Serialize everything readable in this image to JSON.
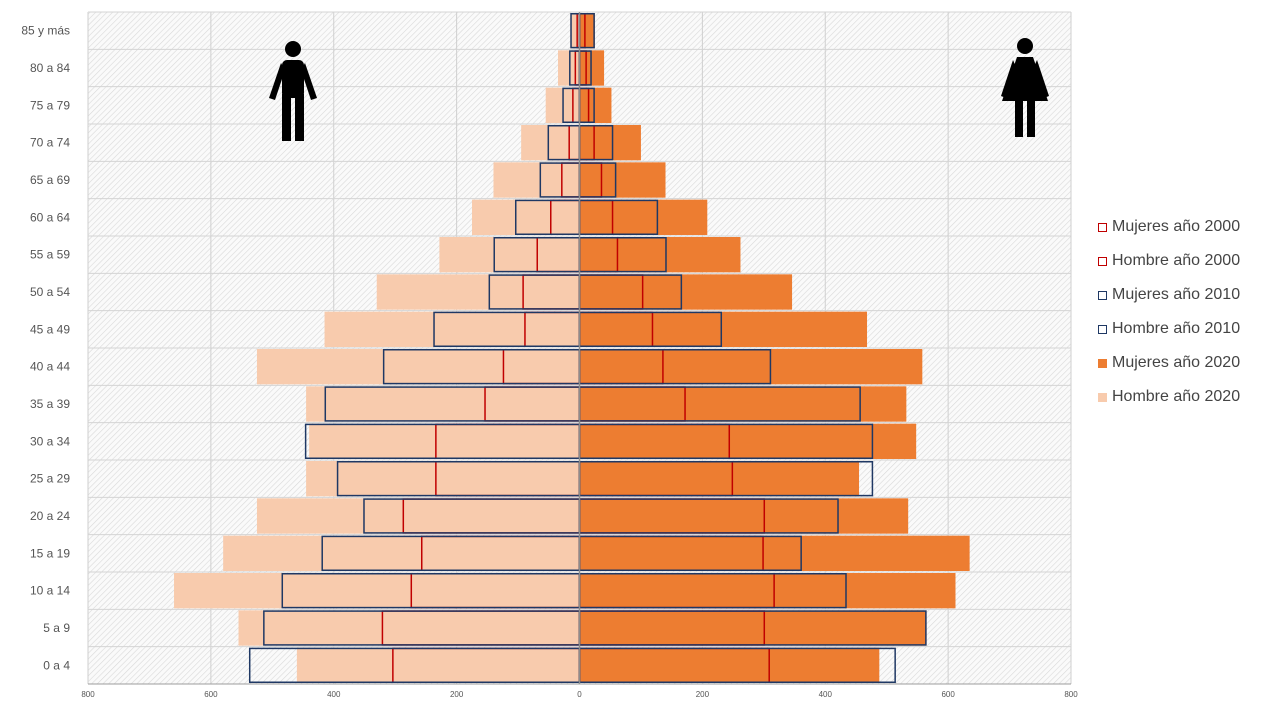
{
  "chart_data": {
    "type": "bar",
    "orientation": "horizontal-population-pyramid",
    "categories": [
      "0 a 4",
      "5 a 9",
      "10 a 14",
      "15 a 19",
      "20 a 24",
      "25 a 29",
      "30 a 34",
      "35 a 39",
      "40 a 44",
      "45 a 49",
      "50 a 54",
      "55 a 59",
      "60 a 64",
      "65 a 69",
      "70 a 74",
      "75 a 79",
      "80 a 84",
      "85 y más"
    ],
    "xlim": [
      -800,
      800
    ],
    "xticks": [
      -800,
      -600,
      -400,
      -200,
      0,
      200,
      400,
      600,
      800
    ],
    "xtick_labels": [
      "800",
      "600",
      "400",
      "200",
      "0",
      "200",
      "400",
      "600",
      "800"
    ],
    "grid": true,
    "legend_position": "right",
    "series": [
      {
        "name": "Hombre año 2020",
        "side": "left",
        "style": "fill",
        "color": "#f8cbad",
        "values": [
          460,
          555,
          660,
          580,
          525,
          445,
          440,
          445,
          525,
          415,
          330,
          228,
          175,
          140,
          95,
          55,
          35,
          15
        ]
      },
      {
        "name": "Mujeres año 2020",
        "side": "right",
        "style": "fill",
        "color": "#ed7d31",
        "values": [
          488,
          565,
          612,
          635,
          535,
          455,
          548,
          532,
          558,
          468,
          346,
          262,
          208,
          140,
          100,
          52,
          40,
          25
        ]
      },
      {
        "name": "Hombre año 2000",
        "side": "left",
        "style": "outline",
        "color": "#c00000",
        "values": [
          305,
          322,
          275,
          258,
          288,
          235,
          235,
          155,
          125,
          90,
          93,
          70,
          48,
          30,
          18,
          12,
          8,
          5
        ]
      },
      {
        "name": "Mujeres año 2000",
        "side": "right",
        "style": "outline",
        "color": "#c00000",
        "values": [
          310,
          302,
          318,
          300,
          302,
          250,
          245,
          173,
          137,
          120,
          104,
          63,
          55,
          37,
          25,
          16,
          12,
          10
        ]
      },
      {
        "name": "Hombre año 2010",
        "side": "left",
        "style": "outline",
        "color": "#1f3864",
        "values": [
          538,
          515,
          485,
          420,
          352,
          395,
          447,
          415,
          320,
          238,
          148,
          140,
          105,
          65,
          52,
          28,
          17,
          15
        ]
      },
      {
        "name": "Mujeres año 2010",
        "side": "right",
        "style": "outline",
        "color": "#1f3864",
        "values": [
          515,
          565,
          435,
          362,
          422,
          478,
          478,
          458,
          312,
          232,
          167,
          142,
          128,
          60,
          55,
          25,
          20,
          25
        ]
      }
    ]
  },
  "legend": [
    {
      "label": "Mujeres año 2000",
      "color": "#c00000",
      "style": "outline"
    },
    {
      "label": "Hombre año 2000",
      "color": "#c00000",
      "style": "outline"
    },
    {
      "label": "Mujeres año 2010",
      "color": "#1f3864",
      "style": "outline"
    },
    {
      "label": "Hombre año 2010",
      "color": "#1f3864",
      "style": "outline"
    },
    {
      "label": "Mujeres año 2020",
      "color": "#ed7d31",
      "style": "fill"
    },
    {
      "label": "Hombre año 2020",
      "color": "#f8cbad",
      "style": "fill"
    }
  ],
  "icons": {
    "left": "man-icon",
    "right": "woman-icon"
  }
}
